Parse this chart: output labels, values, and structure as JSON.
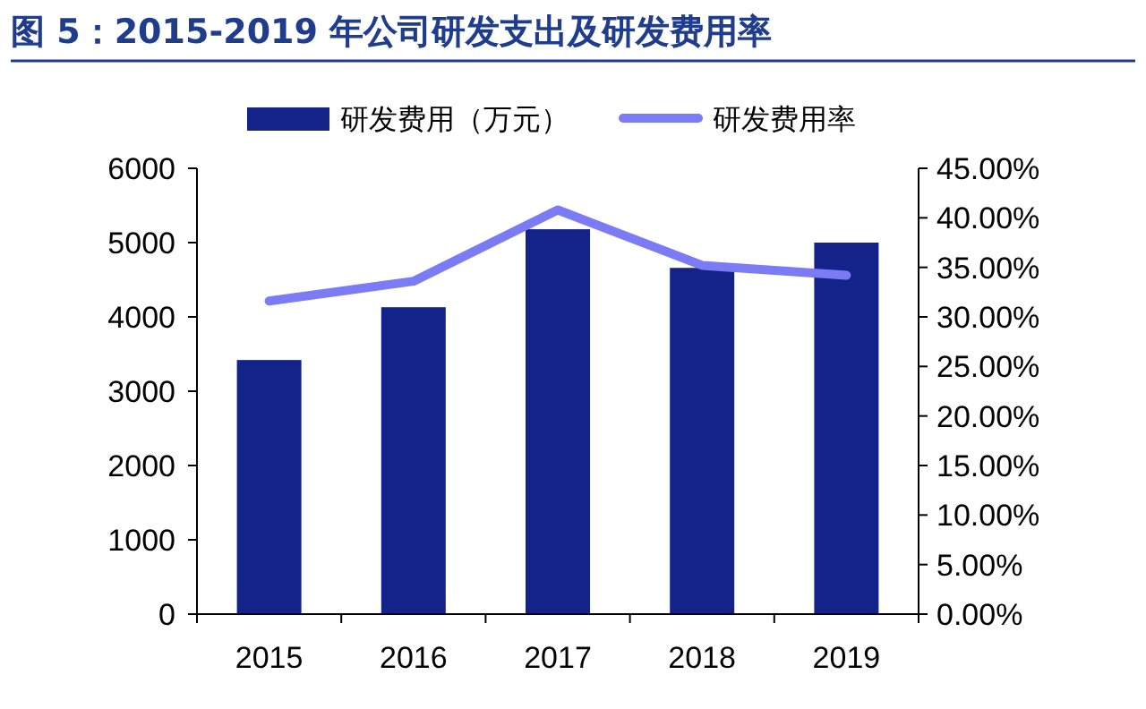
{
  "chart_data": {
    "type": "bar",
    "title": "图 5：2015-2019 年公司研发支出及研发费用率",
    "categories": [
      "2015",
      "2016",
      "2017",
      "2018",
      "2019"
    ],
    "series": [
      {
        "name": "研发费用（万元）",
        "color": "#14238a",
        "values": [
          3420,
          4130,
          5180,
          4660,
          5000
        ]
      },
      {
        "name": "研发费用率",
        "type": "line",
        "axis": "y2",
        "color": "#7b7bf5",
        "values": [
          31.6,
          33.6,
          40.8,
          35.2,
          34.2
        ]
      }
    ],
    "ylim": [
      0,
      6000
    ],
    "yticks": [
      0,
      1000,
      2000,
      3000,
      4000,
      5000,
      6000
    ],
    "y2lim": [
      0,
      45
    ],
    "y2ticks": [
      {
        "value": 0,
        "label": "0.00%"
      },
      {
        "value": 5,
        "label": "5.00%"
      },
      {
        "value": 10,
        "label": "10.00%"
      },
      {
        "value": 15,
        "label": "15.00%"
      },
      {
        "value": 20,
        "label": "20.00%"
      },
      {
        "value": 25,
        "label": "25.00%"
      },
      {
        "value": 30,
        "label": "30.00%"
      },
      {
        "value": 35,
        "label": "35.00%"
      },
      {
        "value": 40,
        "label": "40.00%"
      },
      {
        "value": 45,
        "label": "45.00%"
      }
    ],
    "legend": "top",
    "grid": false
  }
}
